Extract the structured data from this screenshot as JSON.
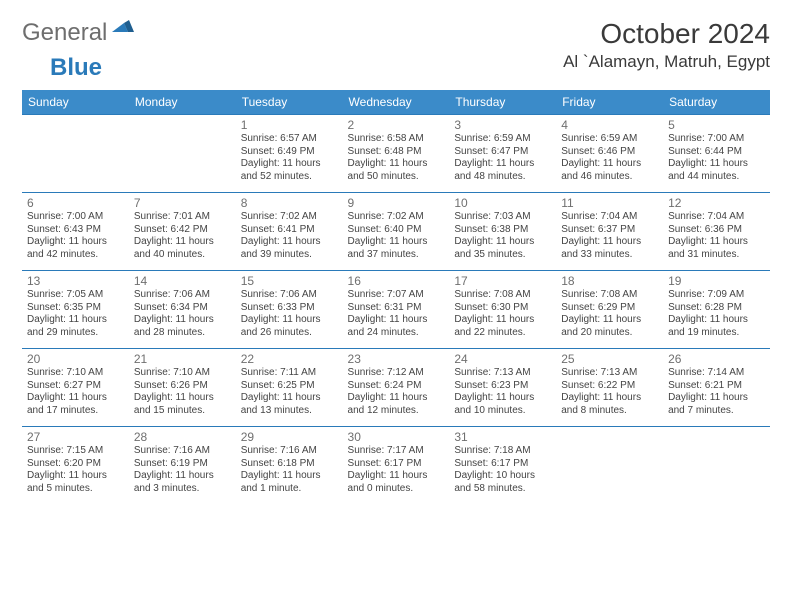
{
  "logo": {
    "general": "General",
    "blue": "Blue"
  },
  "title": "October 2024",
  "location": "Al `Alamayn, Matruh, Egypt",
  "colors": {
    "header_bg": "#3b8bc9",
    "header_fg": "#ffffff",
    "rule": "#2a7ab9",
    "daynum": "#6f6f6f",
    "text": "#444444",
    "logo_gray": "#6e6e6e",
    "logo_blue": "#2a7ab9"
  },
  "day_headers": [
    "Sunday",
    "Monday",
    "Tuesday",
    "Wednesday",
    "Thursday",
    "Friday",
    "Saturday"
  ],
  "weeks": [
    [
      {
        "n": "",
        "sunrise": "",
        "sunset": "",
        "daylight": ""
      },
      {
        "n": "",
        "sunrise": "",
        "sunset": "",
        "daylight": ""
      },
      {
        "n": "1",
        "sunrise": "Sunrise: 6:57 AM",
        "sunset": "Sunset: 6:49 PM",
        "daylight": "Daylight: 11 hours and 52 minutes."
      },
      {
        "n": "2",
        "sunrise": "Sunrise: 6:58 AM",
        "sunset": "Sunset: 6:48 PM",
        "daylight": "Daylight: 11 hours and 50 minutes."
      },
      {
        "n": "3",
        "sunrise": "Sunrise: 6:59 AM",
        "sunset": "Sunset: 6:47 PM",
        "daylight": "Daylight: 11 hours and 48 minutes."
      },
      {
        "n": "4",
        "sunrise": "Sunrise: 6:59 AM",
        "sunset": "Sunset: 6:46 PM",
        "daylight": "Daylight: 11 hours and 46 minutes."
      },
      {
        "n": "5",
        "sunrise": "Sunrise: 7:00 AM",
        "sunset": "Sunset: 6:44 PM",
        "daylight": "Daylight: 11 hours and 44 minutes."
      }
    ],
    [
      {
        "n": "6",
        "sunrise": "Sunrise: 7:00 AM",
        "sunset": "Sunset: 6:43 PM",
        "daylight": "Daylight: 11 hours and 42 minutes."
      },
      {
        "n": "7",
        "sunrise": "Sunrise: 7:01 AM",
        "sunset": "Sunset: 6:42 PM",
        "daylight": "Daylight: 11 hours and 40 minutes."
      },
      {
        "n": "8",
        "sunrise": "Sunrise: 7:02 AM",
        "sunset": "Sunset: 6:41 PM",
        "daylight": "Daylight: 11 hours and 39 minutes."
      },
      {
        "n": "9",
        "sunrise": "Sunrise: 7:02 AM",
        "sunset": "Sunset: 6:40 PM",
        "daylight": "Daylight: 11 hours and 37 minutes."
      },
      {
        "n": "10",
        "sunrise": "Sunrise: 7:03 AM",
        "sunset": "Sunset: 6:38 PM",
        "daylight": "Daylight: 11 hours and 35 minutes."
      },
      {
        "n": "11",
        "sunrise": "Sunrise: 7:04 AM",
        "sunset": "Sunset: 6:37 PM",
        "daylight": "Daylight: 11 hours and 33 minutes."
      },
      {
        "n": "12",
        "sunrise": "Sunrise: 7:04 AM",
        "sunset": "Sunset: 6:36 PM",
        "daylight": "Daylight: 11 hours and 31 minutes."
      }
    ],
    [
      {
        "n": "13",
        "sunrise": "Sunrise: 7:05 AM",
        "sunset": "Sunset: 6:35 PM",
        "daylight": "Daylight: 11 hours and 29 minutes."
      },
      {
        "n": "14",
        "sunrise": "Sunrise: 7:06 AM",
        "sunset": "Sunset: 6:34 PM",
        "daylight": "Daylight: 11 hours and 28 minutes."
      },
      {
        "n": "15",
        "sunrise": "Sunrise: 7:06 AM",
        "sunset": "Sunset: 6:33 PM",
        "daylight": "Daylight: 11 hours and 26 minutes."
      },
      {
        "n": "16",
        "sunrise": "Sunrise: 7:07 AM",
        "sunset": "Sunset: 6:31 PM",
        "daylight": "Daylight: 11 hours and 24 minutes."
      },
      {
        "n": "17",
        "sunrise": "Sunrise: 7:08 AM",
        "sunset": "Sunset: 6:30 PM",
        "daylight": "Daylight: 11 hours and 22 minutes."
      },
      {
        "n": "18",
        "sunrise": "Sunrise: 7:08 AM",
        "sunset": "Sunset: 6:29 PM",
        "daylight": "Daylight: 11 hours and 20 minutes."
      },
      {
        "n": "19",
        "sunrise": "Sunrise: 7:09 AM",
        "sunset": "Sunset: 6:28 PM",
        "daylight": "Daylight: 11 hours and 19 minutes."
      }
    ],
    [
      {
        "n": "20",
        "sunrise": "Sunrise: 7:10 AM",
        "sunset": "Sunset: 6:27 PM",
        "daylight": "Daylight: 11 hours and 17 minutes."
      },
      {
        "n": "21",
        "sunrise": "Sunrise: 7:10 AM",
        "sunset": "Sunset: 6:26 PM",
        "daylight": "Daylight: 11 hours and 15 minutes."
      },
      {
        "n": "22",
        "sunrise": "Sunrise: 7:11 AM",
        "sunset": "Sunset: 6:25 PM",
        "daylight": "Daylight: 11 hours and 13 minutes."
      },
      {
        "n": "23",
        "sunrise": "Sunrise: 7:12 AM",
        "sunset": "Sunset: 6:24 PM",
        "daylight": "Daylight: 11 hours and 12 minutes."
      },
      {
        "n": "24",
        "sunrise": "Sunrise: 7:13 AM",
        "sunset": "Sunset: 6:23 PM",
        "daylight": "Daylight: 11 hours and 10 minutes."
      },
      {
        "n": "25",
        "sunrise": "Sunrise: 7:13 AM",
        "sunset": "Sunset: 6:22 PM",
        "daylight": "Daylight: 11 hours and 8 minutes."
      },
      {
        "n": "26",
        "sunrise": "Sunrise: 7:14 AM",
        "sunset": "Sunset: 6:21 PM",
        "daylight": "Daylight: 11 hours and 7 minutes."
      }
    ],
    [
      {
        "n": "27",
        "sunrise": "Sunrise: 7:15 AM",
        "sunset": "Sunset: 6:20 PM",
        "daylight": "Daylight: 11 hours and 5 minutes."
      },
      {
        "n": "28",
        "sunrise": "Sunrise: 7:16 AM",
        "sunset": "Sunset: 6:19 PM",
        "daylight": "Daylight: 11 hours and 3 minutes."
      },
      {
        "n": "29",
        "sunrise": "Sunrise: 7:16 AM",
        "sunset": "Sunset: 6:18 PM",
        "daylight": "Daylight: 11 hours and 1 minute."
      },
      {
        "n": "30",
        "sunrise": "Sunrise: 7:17 AM",
        "sunset": "Sunset: 6:17 PM",
        "daylight": "Daylight: 11 hours and 0 minutes."
      },
      {
        "n": "31",
        "sunrise": "Sunrise: 7:18 AM",
        "sunset": "Sunset: 6:17 PM",
        "daylight": "Daylight: 10 hours and 58 minutes."
      },
      {
        "n": "",
        "sunrise": "",
        "sunset": "",
        "daylight": ""
      },
      {
        "n": "",
        "sunrise": "",
        "sunset": "",
        "daylight": ""
      }
    ]
  ]
}
